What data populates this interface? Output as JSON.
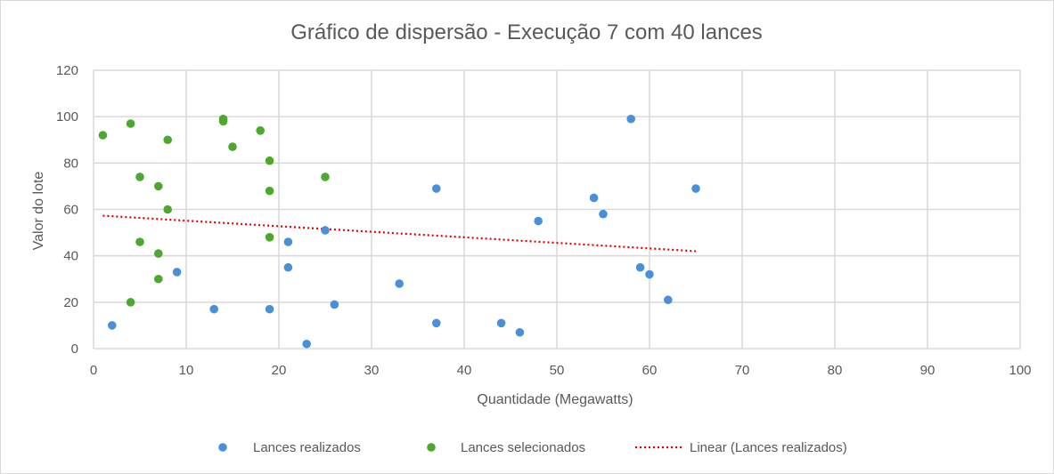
{
  "chart_data": {
    "type": "scatter",
    "title": "Gráfico de dispersão - Execução 7 com 40 lances",
    "xlabel": "Quantidade (Megawatts)",
    "ylabel": "Valor do lote",
    "xlim": [
      0,
      100
    ],
    "ylim": [
      0,
      120
    ],
    "x_ticks": [
      "0",
      "10",
      "20",
      "30",
      "40",
      "50",
      "60",
      "70",
      "80",
      "90",
      "100"
    ],
    "y_ticks": [
      "0",
      "20",
      "40",
      "60",
      "80",
      "100",
      "120"
    ],
    "grid": true,
    "legend_position": "bottom",
    "series": [
      {
        "name": "Lances realizados",
        "color": "#4a90d9",
        "points": [
          [
            2,
            10
          ],
          [
            9,
            33
          ],
          [
            13,
            17
          ],
          [
            19,
            17
          ],
          [
            21,
            46
          ],
          [
            21,
            35
          ],
          [
            23,
            2
          ],
          [
            25,
            51
          ],
          [
            26,
            19
          ],
          [
            33,
            28
          ],
          [
            37,
            69
          ],
          [
            37,
            11
          ],
          [
            44,
            11
          ],
          [
            46,
            7
          ],
          [
            48,
            55
          ],
          [
            54,
            65
          ],
          [
            55,
            58
          ],
          [
            58,
            99
          ],
          [
            59,
            35
          ],
          [
            60,
            32
          ],
          [
            62,
            21
          ],
          [
            65,
            69
          ]
        ]
      },
      {
        "name": "Lances selecionados",
        "color": "#4ea72e",
        "points": [
          [
            1,
            92
          ],
          [
            4,
            97
          ],
          [
            4,
            20
          ],
          [
            5,
            74
          ],
          [
            5,
            46
          ],
          [
            7,
            70
          ],
          [
            7,
            41
          ],
          [
            7,
            30
          ],
          [
            8,
            90
          ],
          [
            8,
            60
          ],
          [
            14,
            99
          ],
          [
            14,
            98
          ],
          [
            15,
            87
          ],
          [
            18,
            94
          ],
          [
            19,
            81
          ],
          [
            19,
            68
          ],
          [
            19,
            48
          ],
          [
            25,
            74
          ]
        ]
      },
      {
        "name": "Linear (Lances realizados)",
        "color": "#e60000",
        "style": "dotted",
        "line": [
          [
            1,
            57.3
          ],
          [
            65,
            42
          ]
        ]
      }
    ]
  }
}
